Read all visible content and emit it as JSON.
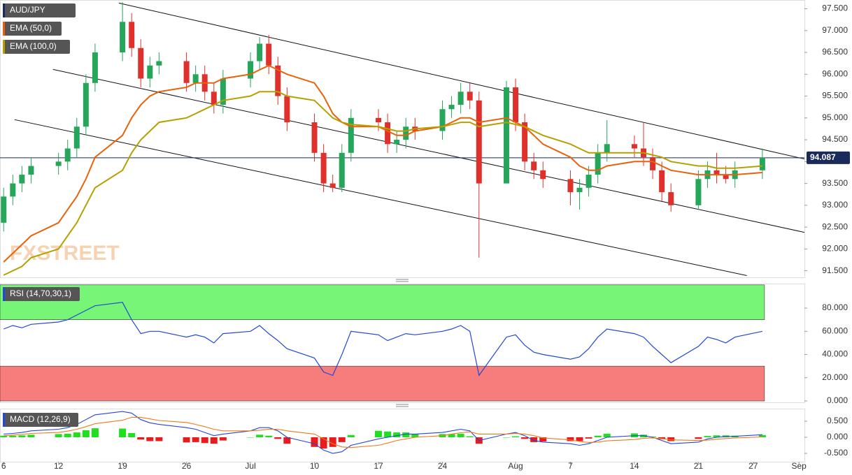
{
  "chart_data": [
    {
      "type": "candlestick",
      "title": "AUD/JPY",
      "watermark": "FXSTREET",
      "x": [
        6,
        7,
        8,
        9,
        12,
        13,
        14,
        15,
        16,
        19,
        20,
        21,
        22,
        23,
        26,
        27,
        28,
        29,
        30,
        33,
        34,
        35,
        36,
        37,
        40,
        41,
        42,
        43,
        44,
        47,
        48,
        49,
        50,
        51,
        54,
        55,
        56,
        57,
        58,
        61,
        62,
        63,
        64,
        65,
        68,
        69,
        70,
        71,
        72,
        75,
        76,
        77,
        78,
        79,
        82,
        83,
        84,
        85,
        86,
        89
      ],
      "open": [
        92.6,
        93.2,
        93.5,
        93.7,
        93.9,
        94.0,
        94.3,
        94.8,
        95.8,
        96.5,
        97.2,
        96.6,
        95.9,
        96.2,
        96.3,
        95.8,
        96.0,
        95.6,
        95.3,
        95.9,
        96.3,
        96.7,
        96.2,
        95.5,
        94.9,
        94.2,
        93.5,
        93.4,
        94.2,
        95.0,
        94.9,
        94.4,
        94.5,
        94.8,
        94.7,
        95.2,
        95.3,
        95.6,
        95.4,
        93.5,
        95.7,
        94.9,
        94.0,
        93.8,
        93.6,
        93.3,
        93.4,
        93.7,
        94.2,
        94.4,
        94.3,
        94.1,
        93.8,
        93.3,
        93.0,
        93.6,
        93.8,
        93.7,
        93.6,
        93.8
      ],
      "high": [
        93.4,
        93.7,
        93.9,
        94.1,
        94.2,
        94.5,
        95.0,
        96.0,
        96.7,
        97.65,
        97.4,
        96.8,
        96.4,
        96.5,
        96.5,
        96.2,
        96.2,
        95.8,
        96.1,
        96.5,
        96.85,
        96.9,
        96.4,
        95.7,
        95.1,
        94.4,
        93.7,
        94.4,
        95.2,
        95.2,
        95.1,
        94.7,
        95.0,
        95.0,
        95.4,
        95.5,
        95.8,
        95.8,
        95.6,
        95.85,
        95.9,
        95.1,
        94.2,
        94.0,
        93.8,
        93.6,
        93.9,
        94.4,
        94.95,
        94.6,
        94.9,
        94.3,
        94.0,
        93.5,
        93.8,
        94.0,
        94.2,
        93.9,
        94.0,
        94.3
      ],
      "low": [
        92.4,
        93.0,
        93.3,
        93.5,
        93.7,
        93.8,
        94.1,
        94.6,
        95.6,
        96.3,
        96.4,
        95.7,
        95.7,
        96.0,
        95.6,
        95.6,
        95.4,
        95.1,
        95.1,
        95.7,
        96.1,
        96.0,
        95.3,
        94.7,
        94.0,
        93.3,
        93.3,
        93.3,
        94.0,
        94.7,
        94.2,
        94.2,
        94.3,
        94.5,
        94.5,
        95.0,
        95.1,
        95.2,
        91.8,
        93.5,
        94.7,
        93.8,
        93.6,
        93.4,
        93.0,
        92.9,
        93.2,
        93.5,
        94.0,
        94.1,
        93.9,
        93.6,
        93.1,
        92.85,
        92.9,
        93.4,
        93.5,
        93.5,
        93.4,
        93.6
      ],
      "close": [
        93.2,
        93.5,
        93.7,
        93.9,
        94.0,
        94.3,
        94.8,
        95.8,
        96.5,
        97.2,
        96.6,
        95.9,
        96.2,
        96.3,
        95.8,
        96.0,
        95.6,
        95.3,
        95.9,
        96.3,
        96.7,
        96.2,
        95.5,
        94.9,
        94.2,
        93.5,
        93.4,
        94.2,
        95.0,
        94.9,
        94.4,
        94.5,
        94.8,
        94.7,
        95.2,
        95.3,
        95.6,
        95.4,
        93.5,
        95.7,
        94.9,
        94.0,
        93.8,
        93.6,
        93.3,
        93.4,
        93.7,
        94.2,
        94.4,
        94.3,
        94.1,
        93.8,
        93.3,
        93.0,
        93.6,
        93.8,
        93.7,
        93.6,
        93.8,
        94.09
      ],
      "up_color": "#26a65b",
      "down_color": "#e0302c",
      "series": [
        {
          "name": "EMA (50,0)",
          "color": "#e8620c",
          "values": [
            91.7,
            91.9,
            92.1,
            92.3,
            92.6,
            92.9,
            93.2,
            93.6,
            94.1,
            94.6,
            95.0,
            95.3,
            95.5,
            95.6,
            95.7,
            95.8,
            95.8,
            95.8,
            95.9,
            96.0,
            96.1,
            96.2,
            96.1,
            96.0,
            95.8,
            95.5,
            95.1,
            94.9,
            94.8,
            94.8,
            94.7,
            94.6,
            94.6,
            94.7,
            94.8,
            94.9,
            95.0,
            95.0,
            94.9,
            95.0,
            94.9,
            94.8,
            94.6,
            94.4,
            94.1,
            93.9,
            93.8,
            93.8,
            93.9,
            94.0,
            94.0,
            94.0,
            93.9,
            93.8,
            93.7,
            93.7,
            93.7,
            93.7,
            93.7,
            93.75
          ]
        },
        {
          "name": "EMA (100,0)",
          "color": "#b5a000",
          "values": [
            91.4,
            91.5,
            91.6,
            91.8,
            92.0,
            92.3,
            92.6,
            93.0,
            93.4,
            93.8,
            94.2,
            94.5,
            94.7,
            94.9,
            95.0,
            95.1,
            95.2,
            95.3,
            95.4,
            95.5,
            95.6,
            95.6,
            95.6,
            95.5,
            95.4,
            95.2,
            95.0,
            94.9,
            94.85,
            94.8,
            94.75,
            94.7,
            94.7,
            94.75,
            94.8,
            94.85,
            94.9,
            94.9,
            94.8,
            94.9,
            94.85,
            94.8,
            94.7,
            94.6,
            94.4,
            94.3,
            94.2,
            94.2,
            94.2,
            94.2,
            94.2,
            94.15,
            94.1,
            94.0,
            93.9,
            93.9,
            93.85,
            93.85,
            93.85,
            93.9
          ]
        }
      ],
      "trendlines": [
        {
          "x": [
            18.6,
            93.6
          ],
          "y": [
            97.63,
            94.06
          ]
        },
        {
          "x": [
            11.4,
            93.6
          ],
          "y": [
            96.11,
            92.38
          ]
        },
        {
          "x": [
            7.2,
            87.3
          ],
          "y": [
            94.96,
            91.39
          ]
        }
      ],
      "last_price": {
        "value": 94.087,
        "label": "94.087"
      },
      "xlim": [
        5.6,
        93.6
      ],
      "xticks": [
        6,
        12,
        19,
        26,
        {
          "value": 33,
          "label": "Jul"
        },
        {
          "value": 40,
          "label": "10"
        },
        {
          "value": 47,
          "label": "17"
        },
        {
          "value": 54,
          "label": "24"
        },
        {
          "value": 62,
          "label": "Aug"
        },
        {
          "value": 68,
          "label": "7"
        },
        {
          "value": 75,
          "label": "14"
        },
        {
          "value": 82,
          "label": "21"
        },
        {
          "value": 88,
          "label": "27"
        },
        {
          "value": 93,
          "label": "Sep"
        }
      ],
      "ylim": [
        91.35,
        97.7
      ],
      "yticks": [
        {
          "value": 91.5,
          "label": "91.500"
        },
        {
          "value": 92,
          "label": "92.000"
        },
        {
          "value": 92.5,
          "label": "92.500"
        },
        {
          "value": 93,
          "label": "93.000"
        },
        {
          "value": 93.5,
          "label": "93.500"
        },
        {
          "value": 94,
          "label": "94.000"
        },
        {
          "value": 94.5,
          "label": "94.500"
        },
        {
          "value": 95,
          "label": "95.000"
        },
        {
          "value": 95.5,
          "label": "95.500"
        },
        {
          "value": 96,
          "label": "96.000"
        },
        {
          "value": 96.5,
          "label": "96.500"
        },
        {
          "value": 97,
          "label": "97.000"
        },
        {
          "value": 97.5,
          "label": "97.500"
        }
      ]
    },
    {
      "type": "line",
      "title": "RSI (14,70,30,1)",
      "color": "#2347d6",
      "values": [
        62,
        65,
        63,
        66,
        68,
        70,
        74,
        78,
        82,
        85,
        70,
        58,
        60,
        60,
        55,
        57,
        55,
        50,
        58,
        60,
        65,
        58,
        52,
        45,
        37,
        25,
        22,
        40,
        60,
        57,
        52,
        55,
        58,
        57,
        60,
        62,
        65,
        60,
        22,
        55,
        57,
        48,
        42,
        40,
        36,
        38,
        45,
        55,
        62,
        58,
        55,
        47,
        40,
        33,
        47,
        55,
        53,
        50,
        55,
        60
      ],
      "bands": [
        {
          "range": [
            70,
            100
          ],
          "color": "#76f576"
        },
        {
          "range": [
            0,
            30
          ],
          "color": "#f77d7d"
        }
      ],
      "ylim": [
        -1.2,
        101.1
      ],
      "yticks": [
        {
          "value": 0,
          "label": "0.000"
        },
        {
          "value": 20,
          "label": "20.000"
        },
        {
          "value": 40,
          "label": "40.000"
        },
        {
          "value": 60,
          "label": "60.000"
        },
        {
          "value": 80,
          "label": "80.000"
        }
      ]
    },
    {
      "type": "macd",
      "title": "MACD (12,26,9)",
      "series": [
        {
          "color": "#2347d6",
          "values": [
            0.1,
            0.12,
            0.15,
            0.2,
            0.25,
            0.3,
            0.4,
            0.55,
            0.7,
            0.8,
            0.75,
            0.55,
            0.45,
            0.4,
            0.3,
            0.25,
            0.15,
            0.05,
            0.1,
            0.2,
            0.3,
            0.3,
            0.2,
            0.0,
            -0.2,
            -0.4,
            -0.5,
            -0.45,
            -0.25,
            -0.05,
            0.0,
            0.05,
            0.1,
            0.1,
            0.15,
            0.2,
            0.25,
            0.2,
            -0.1,
            0.1,
            0.15,
            0.05,
            -0.1,
            -0.15,
            -0.2,
            -0.25,
            -0.2,
            -0.1,
            0.0,
            0.05,
            0.05,
            0.0,
            -0.1,
            -0.2,
            -0.15,
            -0.05,
            0.0,
            0.02,
            0.03,
            0.08
          ]
        },
        {
          "color": "#f07a1a",
          "values": [
            0.05,
            0.07,
            0.09,
            0.12,
            0.15,
            0.19,
            0.25,
            0.33,
            0.42,
            0.53,
            0.62,
            0.62,
            0.57,
            0.52,
            0.46,
            0.4,
            0.33,
            0.25,
            0.2,
            0.2,
            0.22,
            0.25,
            0.25,
            0.2,
            0.1,
            -0.05,
            -0.2,
            -0.3,
            -0.32,
            -0.25,
            -0.18,
            -0.1,
            -0.05,
            0.0,
            0.05,
            0.1,
            0.14,
            0.17,
            0.1,
            0.1,
            0.12,
            0.1,
            0.05,
            -0.02,
            -0.08,
            -0.13,
            -0.16,
            -0.15,
            -0.11,
            -0.07,
            -0.03,
            -0.02,
            -0.04,
            -0.08,
            -0.1,
            -0.09,
            -0.06,
            -0.04,
            -0.02,
            0.01
          ]
        }
      ],
      "histogram": [
        0.05,
        0.05,
        0.06,
        0.08,
        0.1,
        0.11,
        0.15,
        0.22,
        0.28,
        0.27,
        0.13,
        -0.07,
        -0.12,
        -0.12,
        -0.16,
        -0.15,
        -0.18,
        -0.2,
        -0.1,
        0,
        0.08,
        0.05,
        -0.05,
        -0.2,
        -0.3,
        -0.35,
        -0.3,
        -0.15,
        0.07,
        0.2,
        0.18,
        0.15,
        0.15,
        0.1,
        0.1,
        0.1,
        0.11,
        0.03,
        -0.2,
        0,
        0.03,
        -0.05,
        -0.15,
        -0.13,
        -0.12,
        -0.12,
        -0.04,
        0.05,
        0.11,
        0.12,
        0.08,
        0.02,
        -0.06,
        -0.12,
        -0.05,
        0.04,
        0.06,
        0.06,
        0.05,
        0.07
      ],
      "positive_color": "#1ee01e",
      "negative_color": "#e81c1c",
      "ylim": [
        -0.76,
        0.89
      ],
      "yticks": [
        {
          "value": -0.5,
          "label": "-0.500"
        },
        {
          "value": 0,
          "label": "0.000"
        },
        {
          "value": 0.5,
          "label": "0.500"
        }
      ]
    }
  ]
}
